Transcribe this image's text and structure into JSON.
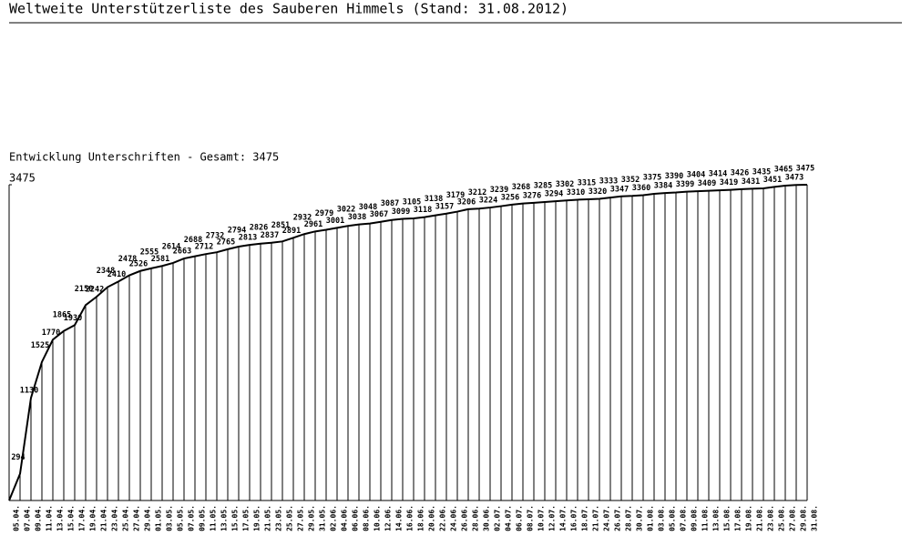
{
  "chart_data": {
    "type": "line",
    "title": "Weltweite Unterstützerliste des Sauberen Himmels (Stand: 31.08.2012)",
    "subtitle": "Entwicklung Unterschriften - Gesamt: 3475",
    "categories": [
      "05.04.",
      "07.04.",
      "09.04.",
      "11.04.",
      "13.04.",
      "15.04.",
      "17.04.",
      "19.04.",
      "21.04.",
      "23.04.",
      "25.04.",
      "27.04.",
      "29.04.",
      "01.05.",
      "03.05.",
      "05.05.",
      "07.05.",
      "09.05.",
      "11.05.",
      "13.05.",
      "15.05.",
      "17.05.",
      "19.05.",
      "21.05.",
      "23.05.",
      "25.05.",
      "27.05.",
      "29.05.",
      "31.05.",
      "02.06.",
      "04.06.",
      "06.06.",
      "08.06.",
      "10.06.",
      "12.06.",
      "14.06.",
      "16.06.",
      "18.06.",
      "20.06.",
      "22.06.",
      "24.06.",
      "26.06.",
      "28.06.",
      "30.06.",
      "02.07.",
      "04.07.",
      "06.07.",
      "08.07.",
      "10.07.",
      "12.07.",
      "14.07.",
      "16.07.",
      "18.07.",
      "21.07.",
      "24.07.",
      "26.07.",
      "28.07.",
      "30.07.",
      "01.08.",
      "03.08.",
      "05.08.",
      "07.08.",
      "09.08.",
      "11.08.",
      "13.08.",
      "15.08.",
      "17.08.",
      "19.08.",
      "21.08.",
      "23.08.",
      "25.08.",
      "27.08.",
      "29.08.",
      "31.08."
    ],
    "values": [
      0,
      294,
      1130,
      1525,
      1770,
      1865,
      1930,
      2150,
      2242,
      2348,
      2410,
      2478,
      2526,
      2555,
      2581,
      2614,
      2663,
      2688,
      2712,
      2732,
      2765,
      2794,
      2813,
      2826,
      2837,
      2851,
      2891,
      2932,
      2961,
      2979,
      3001,
      3022,
      3038,
      3048,
      3067,
      3087,
      3099,
      3105,
      3118,
      3138,
      3157,
      3179,
      3206,
      3212,
      3224,
      3239,
      3256,
      3268,
      3276,
      3285,
      3294,
      3302,
      3310,
      3315,
      3320,
      3333,
      3347,
      3352,
      3360,
      3375,
      3384,
      3390,
      3399,
      3404,
      3409,
      3414,
      3419,
      3426,
      3431,
      3435,
      3451,
      3465,
      3473,
      3475
    ],
    "color": "#000000",
    "ylim": [
      0,
      3475
    ],
    "yticks": [
      3475
    ]
  }
}
